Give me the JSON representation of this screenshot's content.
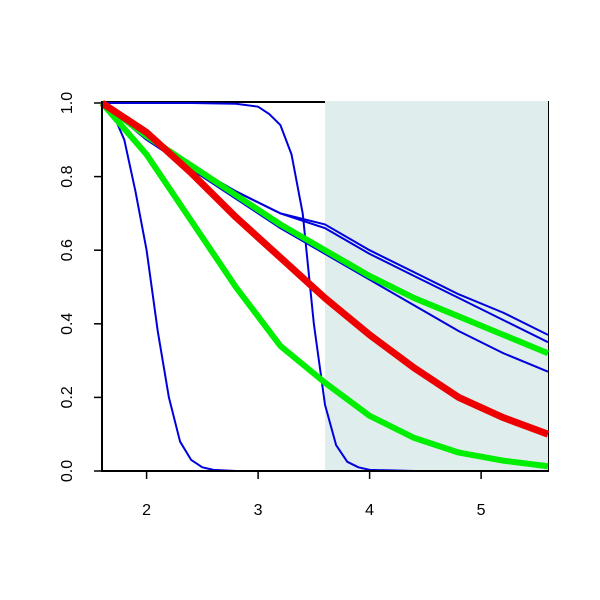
{
  "chart_data": {
    "type": "line",
    "xlim": [
      1.6,
      5.6
    ],
    "ylim": [
      0,
      1
    ],
    "xticks": [
      2,
      3,
      4,
      5
    ],
    "yticks": [
      {
        "value": 0,
        "label": "0.0"
      },
      0.2,
      0.4,
      0.6,
      0.8,
      {
        "value": 1,
        "label": "1.0"
      }
    ],
    "shade": {
      "xlim": [
        3.6,
        5.6
      ],
      "color": "#dfeded"
    },
    "series": [
      {
        "color": "#0000dd",
        "width": 2,
        "x": [
          1.6,
          1.7,
          1.8,
          1.9,
          2.0,
          2.1,
          2.2,
          2.3,
          2.4,
          2.5,
          2.6,
          2.8,
          3.2,
          4.0,
          5.6
        ],
        "values": [
          1.0,
          0.97,
          0.9,
          0.76,
          0.6,
          0.38,
          0.2,
          0.08,
          0.03,
          0.01,
          0.003,
          0,
          0,
          0,
          0
        ]
      },
      {
        "color": "#0000dd",
        "width": 2,
        "x": [
          1.6,
          2.4,
          2.8,
          3.0,
          3.1,
          3.2,
          3.3,
          3.4,
          3.5,
          3.6,
          3.7,
          3.8,
          3.9,
          4.0,
          4.4,
          5.6
        ],
        "values": [
          1.0,
          1.0,
          0.998,
          0.99,
          0.97,
          0.94,
          0.86,
          0.7,
          0.4,
          0.18,
          0.07,
          0.025,
          0.01,
          0.003,
          0,
          0
        ]
      },
      {
        "color": "#0000dd",
        "width": 2,
        "x": [
          1.6,
          2.0,
          2.4,
          2.8,
          3.2,
          3.6,
          4.0,
          4.4,
          4.8,
          5.2,
          5.6
        ],
        "values": [
          1.0,
          0.91,
          0.83,
          0.76,
          0.7,
          0.67,
          0.6,
          0.54,
          0.48,
          0.43,
          0.37
        ]
      },
      {
        "color": "#0000dd",
        "width": 2,
        "x": [
          1.6,
          2.0,
          2.4,
          2.8,
          3.2,
          3.6,
          4.0,
          4.4,
          4.8,
          5.2,
          5.6
        ],
        "values": [
          1.0,
          0.91,
          0.83,
          0.76,
          0.7,
          0.66,
          0.59,
          0.53,
          0.47,
          0.41,
          0.35
        ]
      },
      {
        "color": "#0000dd",
        "width": 2,
        "x": [
          1.6,
          2.0,
          2.4,
          2.8,
          3.2,
          3.6,
          4.0,
          4.4,
          4.8,
          5.2,
          5.6
        ],
        "values": [
          1.0,
          0.9,
          0.82,
          0.74,
          0.66,
          0.59,
          0.52,
          0.45,
          0.38,
          0.32,
          0.27
        ]
      },
      {
        "color": "#00ee00",
        "width": 6,
        "x": [
          1.6,
          2.0,
          2.4,
          2.8,
          3.2,
          3.6,
          4.0,
          4.4,
          4.8,
          5.2,
          5.6
        ],
        "values": [
          1.0,
          0.91,
          0.83,
          0.75,
          0.67,
          0.6,
          0.53,
          0.47,
          0.42,
          0.37,
          0.32
        ]
      },
      {
        "color": "#00ee00",
        "width": 6,
        "x": [
          1.6,
          2.0,
          2.4,
          2.8,
          3.2,
          3.6,
          4.0,
          4.4,
          4.8,
          5.2,
          5.6
        ],
        "values": [
          1.0,
          0.86,
          0.68,
          0.5,
          0.34,
          0.24,
          0.15,
          0.09,
          0.05,
          0.028,
          0.013
        ]
      },
      {
        "color": "#ee0000",
        "width": 7,
        "x": [
          1.6,
          2.0,
          2.4,
          2.8,
          3.2,
          3.6,
          4.0,
          4.4,
          4.8,
          5.2,
          5.6
        ],
        "values": [
          1.0,
          0.92,
          0.81,
          0.69,
          0.58,
          0.47,
          0.37,
          0.28,
          0.2,
          0.145,
          0.1
        ]
      }
    ]
  }
}
